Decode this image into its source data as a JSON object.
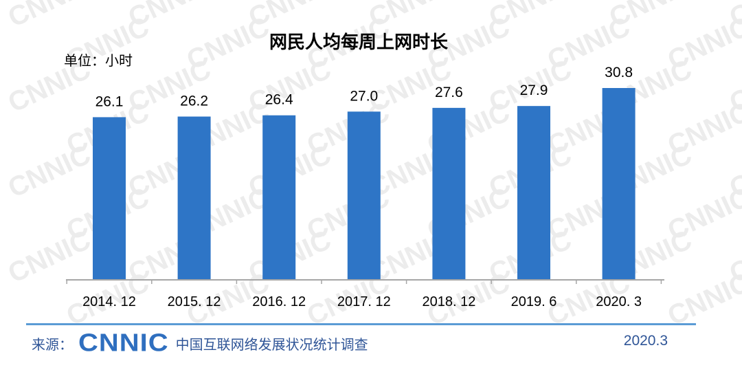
{
  "chart_data": {
    "type": "bar",
    "title": "网民人均每周上网时长",
    "unit_label": "单位：小时",
    "categories": [
      "2014. 12",
      "2015. 12",
      "2016. 12",
      "2017. 12",
      "2018. 12",
      "2019. 6",
      "2020. 3"
    ],
    "values": [
      26.1,
      26.2,
      26.4,
      27.0,
      27.6,
      27.9,
      30.8
    ],
    "value_labels": [
      "26.1",
      "26.2",
      "26.4",
      "27.0",
      "27.6",
      "27.9",
      "30.8"
    ],
    "bar_color": "#2e75c6",
    "axis_color": "#a6a6a6",
    "grid": false,
    "legend": "none"
  },
  "footer": {
    "source_label": "来源：",
    "logo_text": "CNNIC",
    "org_text": "中国互联网络发展状况统计调查",
    "date": "2020.3",
    "text_color": "#2f5597",
    "line_color": "#5b9bd5"
  },
  "watermark": {
    "text": "CNNIC",
    "color": "#ececec"
  }
}
